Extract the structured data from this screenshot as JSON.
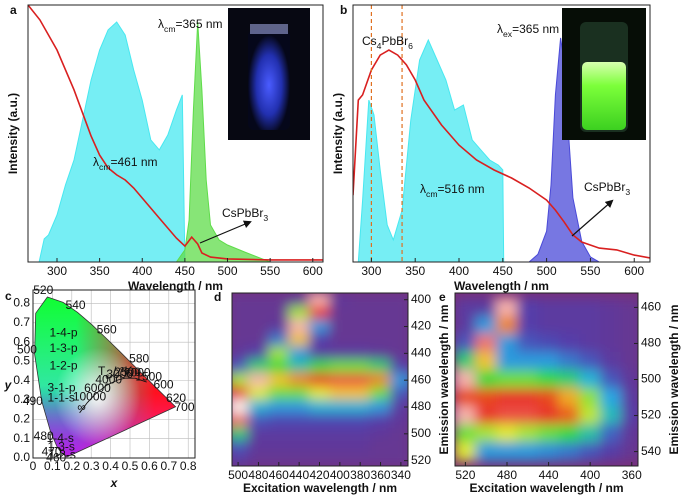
{
  "chart_data": [
    {
      "type": "spectrum",
      "label": "a",
      "xlabel": "Wavelength / nm",
      "ylabel": "Intensity (a.u.)",
      "xlim": [
        266,
        612
      ],
      "xticks": [
        300,
        350,
        400,
        450,
        500,
        550,
        600
      ],
      "ylim": [
        0,
        1
      ],
      "series": [
        {
          "color": "#48e8f0",
          "fill": true,
          "x": [
            279,
            285,
            290,
            300,
            310,
            320,
            330,
            340,
            350,
            360,
            370,
            380,
            390,
            400,
            410,
            420,
            430,
            440,
            447,
            450
          ],
          "values": [
            0,
            0.09,
            0.105,
            0.183,
            0.3,
            0.397,
            0.553,
            0.708,
            0.825,
            0.903,
            0.934,
            0.883,
            0.747,
            0.63,
            0.475,
            0.436,
            0.494,
            0.591,
            0.65,
            0
          ]
        },
        {
          "color": "#5fdc4a",
          "fill": true,
          "x": [
            440,
            450,
            455,
            460,
            465,
            470,
            475,
            480,
            490,
            500,
            520,
            550
          ],
          "values": [
            0,
            0.047,
            0.163,
            0.591,
            0.934,
            0.669,
            0.319,
            0.144,
            0.086,
            0.066,
            0.039,
            0
          ]
        },
        {
          "color": "#d92020",
          "fill": false,
          "x": [
            266,
            280,
            300,
            320,
            340,
            350,
            360,
            370,
            380,
            390,
            400,
            420,
            440,
            450,
            458,
            465,
            470,
            480,
            500,
            550,
            612
          ],
          "values": [
            1,
            0.942,
            0.825,
            0.67,
            0.49,
            0.416,
            0.366,
            0.339,
            0.319,
            0.288,
            0.249,
            0.171,
            0.093,
            0.062,
            0.097,
            0.07,
            0.035,
            0.019,
            0.012,
            0.008,
            0.008
          ]
        }
      ],
      "annotations": [
        {
          "parts": [
            "λ",
            "cm",
            "=365 nm"
          ]
        },
        {
          "parts": [
            "λ",
            "cm",
            "=461 nm"
          ]
        },
        {
          "parts": [
            "CsPbBr",
            "3"
          ]
        }
      ]
    },
    {
      "type": "spectrum",
      "label": "b",
      "xlabel": "Wavelength / nm",
      "ylabel": "Intensity (a.u.)",
      "xlim": [
        279,
        618
      ],
      "xticks": [
        300,
        350,
        400,
        450,
        500,
        550,
        600
      ],
      "ylim": [
        0,
        1
      ],
      "vlines": [
        300,
        335
      ],
      "vline_color": "#e07020",
      "series": [
        {
          "color": "#48e8f0",
          "fill": true,
          "x": [
            285,
            290,
            297,
            303,
            310,
            318,
            325,
            335,
            345,
            355,
            365,
            375,
            385,
            395,
            405,
            415,
            425,
            435,
            445,
            450,
            451
          ],
          "values": [
            0,
            0.241,
            0.63,
            0.572,
            0.358,
            0.144,
            0.086,
            0.202,
            0.553,
            0.786,
            0.864,
            0.786,
            0.708,
            0.591,
            0.611,
            0.475,
            0.436,
            0.397,
            0.377,
            0.358,
            0
          ]
        },
        {
          "color": "#4a4ad8",
          "fill": true,
          "x": [
            480,
            490,
            500,
            505,
            510,
            516,
            520,
            525,
            530,
            540,
            550,
            560
          ],
          "values": [
            0,
            0.03,
            0.12,
            0.3,
            0.65,
            0.872,
            0.78,
            0.5,
            0.25,
            0.08,
            0.02,
            0
          ]
        },
        {
          "color": "#d92020",
          "fill": false,
          "x": [
            279,
            285,
            290,
            300,
            310,
            320,
            330,
            340,
            350,
            360,
            380,
            400,
            420,
            440,
            460,
            480,
            500,
            510,
            520,
            530,
            540,
            560,
            580,
            600,
            618
          ],
          "values": [
            0.26,
            0.63,
            0.65,
            0.747,
            0.805,
            0.825,
            0.805,
            0.767,
            0.708,
            0.63,
            0.533,
            0.455,
            0.397,
            0.358,
            0.327,
            0.288,
            0.241,
            0.202,
            0.156,
            0.105,
            0.078,
            0.054,
            0.047,
            0.027,
            0.016
          ]
        }
      ],
      "annotations": [
        {
          "parts": [
            "Cs",
            "4",
            "PbBr",
            "6"
          ]
        },
        {
          "parts": [
            "λ",
            "ex",
            "=365 nm"
          ]
        },
        {
          "parts": [
            "λ",
            "cm",
            "=516 nm"
          ]
        },
        {
          "parts": [
            "CsPbBr",
            "3"
          ]
        }
      ]
    },
    {
      "type": "chromaticity",
      "label": "c",
      "xlabel": "x",
      "ylabel": "y",
      "grid": true,
      "xlim": [
        0,
        0.835
      ],
      "ylim": [
        0,
        0.87
      ],
      "xticks": [
        0,
        0.1,
        0.2,
        0.3,
        0.4,
        0.5,
        0.6,
        0.7,
        0.8
      ],
      "yticks": [
        {
          "value": 0,
          "label": "0.0"
        },
        0.1,
        0.2,
        0.3,
        0.4,
        0.5,
        0.6,
        0.7,
        0.8
      ],
      "locus": {
        "x": [
          0.174,
          0.144,
          0.124,
          0.091,
          0.045,
          0.008,
          0.014,
          0.074,
          0.155,
          0.23,
          0.302,
          0.373,
          0.444,
          0.512,
          0.575,
          0.627,
          0.691,
          0.735
        ],
        "y": [
          0.005,
          0.03,
          0.058,
          0.133,
          0.295,
          0.538,
          0.75,
          0.834,
          0.806,
          0.754,
          0.692,
          0.624,
          0.555,
          0.487,
          0.424,
          0.372,
          0.308,
          0.265
        ],
        "labels": [
          null,
          460,
          470,
          480,
          490,
          500,
          null,
          520,
          null,
          540,
          null,
          560,
          null,
          580,
          null,
          600,
          620,
          700
        ]
      },
      "planck": {
        "x": [
          0.586,
          0.527,
          0.477,
          0.437,
          0.38,
          0.322,
          0.281,
          0.24
        ],
        "y": [
          0.393,
          0.413,
          0.414,
          0.404,
          0.377,
          0.332,
          0.288,
          0.234
        ],
        "labels": [
          1500,
          2000,
          2500,
          3000,
          4000,
          6000,
          10000,
          "∞"
        ]
      },
      "annotations": [
        {
          "parts": [
            "T",
            "c",
            " / °K"
          ]
        }
      ],
      "regions": [
        "1-4-p",
        "1-3-p",
        "1-2-p",
        "3-1-p",
        "1-1-s",
        "1-4-s",
        "1-3-s",
        "1-2-s"
      ]
    },
    {
      "type": "heatmap",
      "label": "d",
      "xlabel": "Excitation wavelength / nm",
      "ylabel": "Emission wavelength / nm",
      "xlim": [
        506,
        333
      ],
      "ylim": [
        395,
        524
      ],
      "y_reversed": true,
      "y_axis": "right",
      "xticks": [
        500,
        480,
        460,
        440,
        420,
        400,
        380,
        360,
        340
      ],
      "yticks": [
        400,
        420,
        440,
        460,
        480,
        500,
        520
      ],
      "colormap": [
        "#7a2f78",
        "#5040b0",
        "#20b0e8",
        "#30d840",
        "#f4ec30",
        "#e52015",
        "#fff4f0"
      ],
      "x": [
        500,
        480,
        460,
        440,
        420,
        400,
        380,
        360,
        340
      ],
      "y": [
        400,
        410,
        420,
        430,
        440,
        450,
        460,
        470,
        480,
        490,
        500,
        510,
        520
      ],
      "z": [
        [
          0.08,
          0.08,
          0.08,
          0.1,
          0.95,
          0.1,
          0.08,
          0.08,
          0.08
        ],
        [
          0.08,
          0.08,
          0.08,
          0.6,
          0.85,
          0.08,
          0.08,
          0.08,
          0.08
        ],
        [
          0.08,
          0.08,
          0.1,
          0.95,
          0.3,
          0.08,
          0.08,
          0.08,
          0.08
        ],
        [
          0.08,
          0.08,
          0.25,
          0.7,
          0.15,
          0.08,
          0.08,
          0.08,
          0.08
        ],
        [
          0.1,
          0.15,
          0.6,
          0.3,
          0.12,
          0.12,
          0.12,
          0.1,
          0.08
        ],
        [
          0.2,
          0.45,
          0.5,
          0.4,
          0.5,
          0.55,
          0.55,
          0.45,
          0.15
        ],
        [
          0.6,
          0.95,
          0.7,
          0.75,
          0.85,
          0.87,
          0.87,
          0.75,
          0.3
        ],
        [
          0.85,
          0.65,
          0.55,
          0.55,
          0.65,
          0.7,
          0.7,
          0.55,
          0.2
        ],
        [
          1,
          0.35,
          0.3,
          0.3,
          0.35,
          0.35,
          0.35,
          0.3,
          0.12
        ],
        [
          0.9,
          0.2,
          0.18,
          0.18,
          0.18,
          0.18,
          0.18,
          0.15,
          0.1
        ],
        [
          0.45,
          0.12,
          0.12,
          0.12,
          0.12,
          0.12,
          0.12,
          0.1,
          0.08
        ],
        [
          0.2,
          0.1,
          0.1,
          0.1,
          0.1,
          0.1,
          0.1,
          0.08,
          0.08
        ],
        [
          0.12,
          0.08,
          0.08,
          0.08,
          0.08,
          0.08,
          0.08,
          0.08,
          0.08
        ]
      ]
    },
    {
      "type": "heatmap",
      "label": "e",
      "xlabel": "Excitation wavelength / nm",
      "ylabel": "Emission wavelength / nm",
      "xlim": [
        530,
        354
      ],
      "ylim": [
        452,
        548
      ],
      "y_reversed": true,
      "y_axis": "right",
      "xticks": [
        520,
        480,
        440,
        400,
        360
      ],
      "yticks": [
        460,
        480,
        500,
        520,
        540
      ],
      "colormap": [
        "#7a2f78",
        "#5040b0",
        "#20b0e8",
        "#30d840",
        "#f4ec30",
        "#e52015",
        "#fff4f0"
      ],
      "x": [
        520,
        500,
        480,
        460,
        440,
        420,
        400,
        380,
        360
      ],
      "y": [
        460,
        470,
        480,
        490,
        500,
        510,
        520,
        530,
        540
      ],
      "z": [
        [
          0.12,
          0.12,
          0.95,
          0.15,
          0.12,
          0.12,
          0.12,
          0.1,
          0.08
        ],
        [
          0.12,
          0.3,
          0.75,
          0.15,
          0.12,
          0.12,
          0.12,
          0.1,
          0.08
        ],
        [
          0.2,
          0.9,
          0.3,
          0.2,
          0.18,
          0.15,
          0.12,
          0.1,
          0.08
        ],
        [
          0.45,
          0.7,
          0.3,
          0.3,
          0.3,
          0.25,
          0.2,
          0.12,
          0.08
        ],
        [
          0.95,
          0.5,
          0.55,
          0.55,
          0.5,
          0.45,
          0.35,
          0.2,
          0.1
        ],
        [
          0.8,
          0.8,
          0.85,
          0.85,
          0.8,
          0.72,
          0.58,
          0.32,
          0.12
        ],
        [
          0.95,
          0.85,
          0.87,
          0.87,
          0.85,
          0.78,
          0.62,
          0.38,
          0.14
        ],
        [
          0.55,
          0.6,
          0.65,
          0.6,
          0.55,
          0.5,
          0.4,
          0.22,
          0.1
        ],
        [
          0.65,
          0.3,
          0.3,
          0.3,
          0.28,
          0.25,
          0.2,
          0.14,
          0.08
        ]
      ]
    }
  ]
}
